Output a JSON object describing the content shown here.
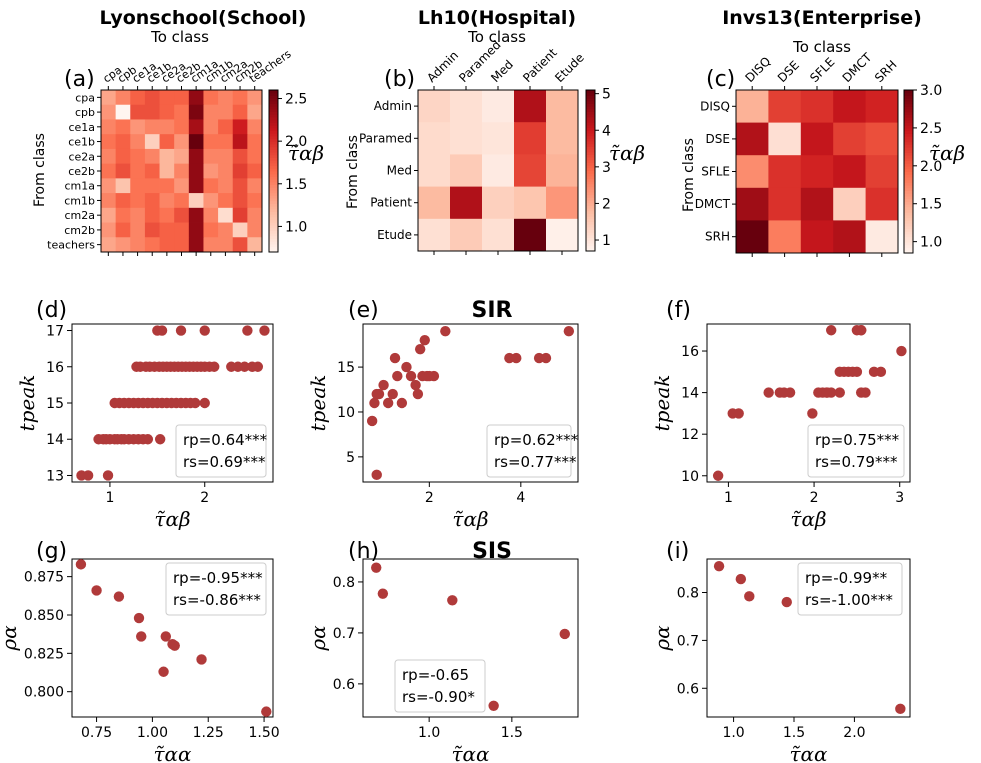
{
  "colorscale": {
    "low": "#fff5f0",
    "mid1": "#fcbba1",
    "mid2": "#fb6a4a",
    "mid3": "#cb181d",
    "high": "#67000d"
  },
  "point_color": "#b03a3a",
  "chart_data": [
    {
      "id": "a",
      "letter": "(a)",
      "type": "heatmap",
      "title": "Lyonschool(School)",
      "xlabel": "To class",
      "ylabel": "From class",
      "colorbar_label": "τ̃αβ",
      "categories": [
        "cpa",
        "cpb",
        "ce1a",
        "ce1b",
        "ce2a",
        "ce2b",
        "cm1a",
        "cm1b",
        "cm2a",
        "cm2b",
        "teachers"
      ],
      "vmin": 0.7,
      "vmax": 2.6,
      "colorbar_ticks": [
        "1.0",
        "1.5",
        "2.0",
        "2.5"
      ],
      "colorbar_tick_values": [
        1.0,
        1.5,
        2.0,
        2.5
      ],
      "values": [
        [
          1.3,
          1.5,
          1.7,
          1.8,
          1.7,
          1.7,
          2.4,
          1.6,
          1.5,
          1.6,
          1.4
        ],
        [
          1.4,
          0.7,
          1.8,
          1.8,
          1.7,
          1.6,
          2.5,
          1.5,
          1.5,
          1.7,
          1.3
        ],
        [
          1.5,
          1.6,
          1.4,
          1.5,
          1.5,
          1.6,
          2.3,
          1.5,
          1.7,
          2.1,
          1.5
        ],
        [
          1.6,
          1.7,
          1.5,
          1.0,
          1.7,
          1.4,
          2.6,
          1.6,
          1.6,
          2.2,
          1.6
        ],
        [
          1.5,
          1.7,
          1.6,
          1.5,
          1.2,
          1.3,
          2.4,
          1.5,
          1.5,
          1.8,
          1.6
        ],
        [
          1.6,
          1.8,
          1.6,
          1.7,
          1.2,
          1.5,
          2.4,
          1.4,
          1.5,
          1.9,
          1.7
        ],
        [
          1.4,
          1.1,
          1.6,
          1.6,
          1.6,
          1.4,
          2.4,
          1.6,
          1.5,
          1.8,
          1.5
        ],
        [
          1.5,
          1.7,
          1.6,
          1.7,
          1.5,
          1.6,
          1.0,
          1.4,
          1.6,
          1.8,
          1.6
        ],
        [
          1.3,
          1.6,
          1.5,
          1.7,
          1.6,
          1.8,
          2.4,
          1.5,
          0.9,
          1.9,
          1.5
        ],
        [
          1.4,
          1.7,
          1.5,
          1.8,
          1.7,
          1.7,
          2.4,
          1.6,
          1.5,
          1.0,
          1.5
        ],
        [
          1.3,
          1.4,
          1.5,
          1.6,
          1.7,
          1.7,
          2.4,
          1.5,
          1.5,
          1.8,
          1.2
        ]
      ]
    },
    {
      "id": "b",
      "letter": "(b)",
      "type": "heatmap",
      "title": "Lh10(Hospital)",
      "xlabel": "To class",
      "ylabel": "From class",
      "colorbar_label": "τ̃αβ",
      "categories": [
        "Admin",
        "Paramed",
        "Med",
        "Patient",
        "Etude"
      ],
      "vmin": 0.7,
      "vmax": 5.1,
      "colorbar_ticks": [
        "1",
        "2",
        "3",
        "4",
        "5"
      ],
      "colorbar_tick_values": [
        1,
        2,
        3,
        4,
        5
      ],
      "values": [
        [
          1.3,
          1.1,
          0.9,
          4.3,
          1.8
        ],
        [
          1.2,
          1.1,
          1.0,
          3.5,
          1.8
        ],
        [
          1.2,
          1.5,
          0.9,
          3.4,
          1.9
        ],
        [
          1.8,
          4.3,
          1.4,
          1.6,
          2.3
        ],
        [
          1.1,
          1.5,
          1.1,
          5.1,
          0.8
        ]
      ]
    },
    {
      "id": "c",
      "letter": "(c)",
      "type": "heatmap",
      "title": "Invs13(Enterprise)",
      "xlabel": "To class",
      "ylabel": "From class",
      "colorbar_label": "τ̃αβ",
      "categories": [
        "DISQ",
        "DSE",
        "SFLE",
        "DMCT",
        "SRH"
      ],
      "vmin": 0.85,
      "vmax": 3.0,
      "colorbar_ticks": [
        "1.0",
        "1.5",
        "2.0",
        "2.5",
        "3.0"
      ],
      "colorbar_tick_values": [
        1.0,
        1.5,
        2.0,
        2.5,
        3.0
      ],
      "values": [
        [
          1.45,
          2.2,
          2.3,
          2.5,
          2.4
        ],
        [
          2.6,
          1.05,
          2.5,
          2.2,
          2.1
        ],
        [
          1.7,
          2.3,
          2.4,
          2.5,
          2.2
        ],
        [
          2.7,
          2.3,
          2.6,
          1.2,
          2.3
        ],
        [
          3.0,
          1.8,
          2.5,
          2.6,
          0.95
        ]
      ]
    },
    {
      "id": "d",
      "letter": "(d)",
      "type": "scatter",
      "xlabel": "τ̃αβ",
      "ylabel": "tpeak",
      "xlim": [
        0.6,
        2.72
      ],
      "ylim": [
        12.82,
        17.18
      ],
      "xticks": [
        1,
        2
      ],
      "xtick_labels": [
        "1",
        "2"
      ],
      "yticks": [
        13,
        14,
        15,
        16,
        17
      ],
      "ytick_labels": [
        "13",
        "14",
        "15",
        "16",
        "17"
      ],
      "stats": [
        "rp=0.64***",
        "rs=0.69***"
      ],
      "x": [
        0.7,
        0.77,
        0.98,
        0.88,
        0.93,
        0.96,
        1.0,
        1.05,
        1.08,
        1.12,
        1.15,
        1.2,
        1.25,
        1.3,
        1.35,
        1.4,
        1.53,
        1.05,
        1.1,
        1.15,
        1.2,
        1.25,
        1.3,
        1.35,
        1.4,
        1.45,
        1.5,
        1.55,
        1.6,
        1.65,
        1.7,
        1.75,
        1.8,
        1.85,
        1.9,
        2.0,
        1.28,
        1.32,
        1.38,
        1.42,
        1.47,
        1.52,
        1.56,
        1.6,
        1.64,
        1.68,
        1.72,
        1.76,
        1.8,
        1.84,
        1.88,
        1.92,
        1.96,
        2.0,
        2.05,
        2.1,
        2.28,
        2.35,
        2.42,
        2.5,
        2.56,
        1.5,
        1.55,
        1.75,
        2.0,
        2.45,
        2.63
      ],
      "y": [
        13,
        13,
        13,
        14,
        14,
        14,
        14,
        14,
        14,
        14,
        14,
        14,
        14,
        14,
        14,
        14,
        14,
        15,
        15,
        15,
        15,
        15,
        15,
        15,
        15,
        15,
        15,
        15,
        15,
        15,
        15,
        15,
        15,
        15,
        15,
        15,
        16,
        16,
        16,
        16,
        16,
        16,
        16,
        16,
        16,
        16,
        16,
        16,
        16,
        16,
        16,
        16,
        16,
        16,
        16,
        16,
        16,
        16,
        16,
        16,
        16,
        17,
        17,
        17,
        17,
        17,
        17
      ]
    },
    {
      "id": "e",
      "letter": "(e)",
      "type": "scatter",
      "title": "SIR",
      "xlabel": "τ̃αβ",
      "ylabel": "tpeak",
      "xlim": [
        0.55,
        5.25
      ],
      "ylim": [
        2.2,
        19.8
      ],
      "xticks": [
        2,
        4
      ],
      "xtick_labels": [
        "2",
        "4"
      ],
      "yticks": [
        5,
        10,
        15
      ],
      "ytick_labels": [
        "5",
        "10",
        "15"
      ],
      "stats": [
        "rp=0.62***",
        "rs=0.77***"
      ],
      "x": [
        0.75,
        0.8,
        0.85,
        0.9,
        1.0,
        1.1,
        1.2,
        1.25,
        1.3,
        1.4,
        1.5,
        1.6,
        1.7,
        1.75,
        1.8,
        1.85,
        1.9,
        1.95,
        2.0,
        2.1,
        2.35,
        3.75,
        3.9,
        4.4,
        4.55,
        5.05,
        0.85
      ],
      "y": [
        9,
        11,
        12,
        12,
        13,
        11,
        12,
        16,
        14,
        11,
        15,
        14,
        13,
        12,
        17,
        14,
        18,
        14,
        14,
        14,
        19,
        16,
        16,
        16,
        16,
        19,
        3
      ]
    },
    {
      "id": "f",
      "letter": "(f)",
      "type": "scatter",
      "xlabel": "τ̃αβ",
      "ylabel": "tpeak",
      "xlim": [
        0.75,
        3.12
      ],
      "ylim": [
        9.7,
        17.3
      ],
      "xticks": [
        1,
        2,
        3
      ],
      "xtick_labels": [
        "1",
        "2",
        "3"
      ],
      "yticks": [
        10,
        12,
        14,
        16
      ],
      "ytick_labels": [
        "10",
        "12",
        "14",
        "16"
      ],
      "stats": [
        "rp=0.75***",
        "rs=0.79***"
      ],
      "x": [
        0.88,
        1.05,
        1.12,
        1.47,
        1.6,
        1.65,
        1.72,
        1.98,
        2.05,
        2.1,
        2.15,
        2.3,
        2.4,
        2.5,
        2.55,
        2.2,
        2.35,
        2.45,
        2.55,
        2.7,
        2.78,
        2.5,
        2.55,
        2.3,
        2.6,
        3.02,
        2.2,
        2.15
      ],
      "y": [
        10,
        13,
        13,
        14,
        14,
        14,
        14,
        13,
        14,
        14,
        14,
        15,
        15,
        15,
        14,
        17,
        15,
        15,
        17,
        15,
        15,
        17,
        17,
        14,
        14,
        16,
        14,
        14
      ]
    },
    {
      "id": "g",
      "letter": "(g)",
      "type": "scatter",
      "xlabel": "τ̃αα",
      "ylabel": "ρα",
      "xlim": [
        0.64,
        1.54
      ],
      "ylim": [
        0.7835,
        0.8865
      ],
      "xticks": [
        0.75,
        1.0,
        1.25,
        1.5
      ],
      "xtick_labels": [
        "0.75",
        "1.00",
        "1.25",
        "1.50"
      ],
      "yticks": [
        0.8,
        0.825,
        0.85,
        0.875
      ],
      "ytick_labels": [
        "0.800",
        "0.825",
        "0.850",
        "0.875"
      ],
      "stats": [
        "rp=-0.95***",
        "rs=-0.86***"
      ],
      "x": [
        0.68,
        0.75,
        0.85,
        0.94,
        0.95,
        1.05,
        1.06,
        1.09,
        1.1,
        1.22,
        1.51
      ],
      "y": [
        0.883,
        0.866,
        0.862,
        0.848,
        0.836,
        0.813,
        0.836,
        0.831,
        0.83,
        0.821,
        0.787
      ]
    },
    {
      "id": "h",
      "letter": "(h)",
      "type": "scatter",
      "title": "SIS",
      "xlabel": "τ̃αα",
      "ylabel": "ρα",
      "xlim": [
        0.6,
        1.9
      ],
      "ylim": [
        0.535,
        0.845
      ],
      "xticks": [
        1.0,
        1.5
      ],
      "xtick_labels": [
        "1.0",
        "1.5"
      ],
      "yticks": [
        0.6,
        0.7,
        0.8
      ],
      "ytick_labels": [
        "0.6",
        "0.7",
        "0.8"
      ],
      "stats": [
        "rp=-0.65",
        "rs=-0.90*"
      ],
      "x": [
        0.68,
        0.72,
        1.14,
        1.39,
        1.82
      ],
      "y": [
        0.828,
        0.777,
        0.764,
        0.557,
        0.698
      ]
    },
    {
      "id": "i",
      "letter": "(i)",
      "type": "scatter",
      "xlabel": "τ̃αα",
      "ylabel": "ρα",
      "xlim": [
        0.78,
        2.46
      ],
      "ylim": [
        0.54,
        0.87
      ],
      "xticks": [
        1.0,
        1.5,
        2.0
      ],
      "xtick_labels": [
        "1.0",
        "1.5",
        "2.0"
      ],
      "yticks": [
        0.6,
        0.7,
        0.8
      ],
      "ytick_labels": [
        "0.6",
        "0.7",
        "0.8"
      ],
      "stats": [
        "rp=-0.99**",
        "rs=-1.00***"
      ],
      "x": [
        0.88,
        1.06,
        1.13,
        1.44,
        2.38
      ],
      "y": [
        0.855,
        0.828,
        0.792,
        0.78,
        0.557
      ]
    }
  ]
}
